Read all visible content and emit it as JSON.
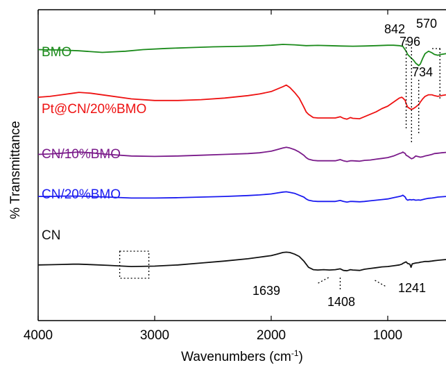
{
  "chart_data": {
    "type": "line",
    "xlabel": "Wavenumbers (cm",
    "xlabel_sup": "-1",
    "xlabel_close": ")",
    "ylabel": "% Transmittance",
    "xlim": [
      4000,
      500
    ],
    "x_reversed": true,
    "ylim": [
      0,
      100
    ],
    "grid": false,
    "x_ticks": [
      4000,
      3000,
      2000,
      1000
    ],
    "x_tick_labels": [
      "4000",
      "3000",
      "2000",
      "1000"
    ],
    "series": [
      {
        "name": "BMO",
        "color": "#1a8a1a",
        "x": [
          4000,
          3800,
          3650,
          3450,
          3250,
          3100,
          2900,
          2700,
          2500,
          2300,
          2150,
          2000,
          1900,
          1800,
          1700,
          1600,
          1500,
          1400,
          1300,
          1200,
          1100,
          1000,
          950,
          900,
          870,
          842,
          830,
          796,
          780,
          760,
          734,
          720,
          700,
          680,
          650,
          620,
          600,
          570,
          540,
          500
        ],
        "y": [
          90,
          89.5,
          88.5,
          86.5,
          88,
          90,
          91.5,
          92.5,
          93.5,
          94,
          94.5,
          95.5,
          96.5,
          96,
          95,
          95.3,
          95,
          94.5,
          94.3,
          94.5,
          95,
          95.5,
          95.5,
          95,
          94,
          88,
          84,
          79,
          77,
          73,
          70,
          72,
          79,
          85,
          88,
          86,
          84,
          83,
          84,
          85
        ]
      },
      {
        "name": "Pt@CN/20%BMO",
        "color": "#ee1111",
        "x": [
          4000,
          3900,
          3800,
          3700,
          3650,
          3550,
          3400,
          3200,
          3000,
          2800,
          2600,
          2400,
          2200,
          2100,
          2000,
          1950,
          1900,
          1870,
          1840,
          1800,
          1760,
          1720,
          1700,
          1680,
          1639,
          1600,
          1550,
          1500,
          1450,
          1408,
          1380,
          1350,
          1320,
          1300,
          1241,
          1200,
          1150,
          1100,
          1050,
          1000,
          950,
          900,
          880,
          870,
          850,
          842,
          830,
          810,
          796,
          780,
          760,
          734,
          720,
          700,
          680,
          650,
          620,
          600,
          570,
          540,
          500
        ],
        "y": [
          64,
          65,
          67,
          69,
          70,
          69,
          66,
          62,
          60,
          60,
          61,
          63,
          66,
          68,
          71,
          74,
          77,
          79,
          76,
          70,
          63,
          52,
          46,
          43,
          39,
          38.5,
          38.5,
          38.5,
          38.5,
          40,
          38,
          37,
          39,
          38,
          37.5,
          40,
          43,
          46,
          50,
          53,
          58,
          63,
          64,
          63,
          60,
          56,
          52,
          50,
          49,
          50,
          52,
          55,
          58,
          62,
          65,
          67,
          67,
          66,
          65,
          66,
          67
        ]
      },
      {
        "name": "CN/10%BMO",
        "color": "#7a1a8a",
        "x": [
          4000,
          3900,
          3800,
          3700,
          3650,
          3550,
          3400,
          3200,
          3000,
          2800,
          2600,
          2400,
          2200,
          2100,
          2000,
          1950,
          1900,
          1870,
          1840,
          1800,
          1760,
          1720,
          1700,
          1680,
          1639,
          1600,
          1550,
          1500,
          1450,
          1408,
          1380,
          1350,
          1320,
          1300,
          1241,
          1200,
          1150,
          1100,
          1050,
          1000,
          950,
          900,
          880,
          870,
          850,
          842,
          830,
          810,
          796,
          780,
          760,
          734,
          720,
          700,
          680,
          650,
          620,
          600,
          570,
          540,
          500
        ],
        "y": [
          50,
          50.5,
          51.5,
          52.5,
          53,
          52,
          50,
          48,
          47.5,
          48,
          49,
          50,
          51,
          52,
          54,
          56,
          58,
          59,
          58,
          56,
          53,
          49,
          46,
          44,
          42.5,
          42,
          42,
          42,
          42,
          43.5,
          42,
          41,
          42,
          42,
          41.5,
          42.5,
          43,
          44,
          45,
          46,
          48,
          51,
          52,
          53,
          51,
          49,
          48,
          46,
          44.5,
          45.5,
          48,
          47,
          46.5,
          47,
          48,
          49,
          50,
          51,
          51.5,
          52,
          52.5
        ]
      },
      {
        "name": "CN/20%BMO",
        "color": "#1a1af0",
        "x": [
          4000,
          3900,
          3800,
          3700,
          3650,
          3550,
          3400,
          3200,
          3000,
          2800,
          2600,
          2400,
          2200,
          2100,
          2000,
          1950,
          1900,
          1870,
          1840,
          1800,
          1760,
          1720,
          1700,
          1680,
          1639,
          1600,
          1550,
          1500,
          1450,
          1408,
          1380,
          1350,
          1320,
          1300,
          1241,
          1200,
          1150,
          1100,
          1050,
          1000,
          950,
          900,
          880,
          870,
          850,
          842,
          830,
          810,
          796,
          780,
          760,
          734,
          720,
          700,
          680,
          650,
          620,
          600,
          570,
          540,
          500
        ],
        "y": [
          41,
          41,
          41.5,
          41.5,
          41.5,
          41,
          40,
          38.5,
          38.5,
          39,
          40,
          41,
          42.5,
          43.5,
          45,
          46.5,
          48,
          48.5,
          47.5,
          46,
          43,
          40,
          37,
          35,
          33.5,
          33,
          33,
          33,
          33,
          34.5,
          33,
          32,
          33,
          33,
          32.5,
          33,
          34,
          35,
          36,
          37,
          39,
          41,
          42,
          43,
          40,
          37,
          35,
          36,
          35.5,
          36,
          35,
          35.5,
          35,
          36,
          37,
          38,
          38.5,
          39,
          40,
          40.5,
          41
        ]
      },
      {
        "name": "CN",
        "color": "#111111",
        "x": [
          4000,
          3900,
          3800,
          3700,
          3650,
          3550,
          3400,
          3200,
          3000,
          2800,
          2600,
          2400,
          2200,
          2100,
          2000,
          1950,
          1900,
          1870,
          1840,
          1800,
          1760,
          1720,
          1700,
          1680,
          1639,
          1600,
          1550,
          1500,
          1450,
          1408,
          1380,
          1350,
          1320,
          1300,
          1241,
          1200,
          1150,
          1100,
          1050,
          1000,
          950,
          900,
          880,
          870,
          850,
          842,
          830,
          810,
          800,
          790,
          760,
          734,
          720,
          700,
          680,
          650,
          620,
          600,
          570,
          540,
          500
        ],
        "y": [
          18,
          18.3,
          18.7,
          19,
          19,
          18.5,
          17.5,
          16,
          16.5,
          18,
          20.5,
          23,
          26,
          28,
          30,
          32,
          34,
          34.5,
          34,
          32,
          29,
          23,
          19,
          15,
          12,
          11.5,
          12,
          11.5,
          12,
          13,
          11,
          10.5,
          12,
          11.5,
          11,
          12.5,
          13.5,
          14.5,
          15.5,
          16,
          17,
          18,
          19,
          20,
          21.5,
          22,
          20,
          19,
          15,
          19.5,
          20.5,
          21,
          21.5,
          22,
          22.5,
          22.5,
          23,
          23.5,
          24,
          24.5,
          25
        ]
      }
    ],
    "series_labels": [
      {
        "text": "BMO",
        "color": "#1a8a1a"
      },
      {
        "text": "Pt@CN/20%BMO",
        "color": "#ee1111"
      },
      {
        "text": "CN/10%BMO",
        "color": "#7a1a8a"
      },
      {
        "text": "CN/20%BMO",
        "color": "#1a1af0"
      },
      {
        "text": "CN",
        "color": "#111111"
      }
    ],
    "peak_annotations": [
      {
        "text": "842",
        "x": 842
      },
      {
        "text": "796",
        "x": 796
      },
      {
        "text": "734",
        "x": 734
      },
      {
        "text": "570",
        "x": 570
      },
      {
        "text": "1639",
        "x": 1639
      },
      {
        "text": "1408",
        "x": 1408
      },
      {
        "text": "1241",
        "x": 1241
      }
    ],
    "highlight_box": {
      "x_from": 3300,
      "x_to": 3050,
      "y_from": 8,
      "y_to": 20
    }
  }
}
